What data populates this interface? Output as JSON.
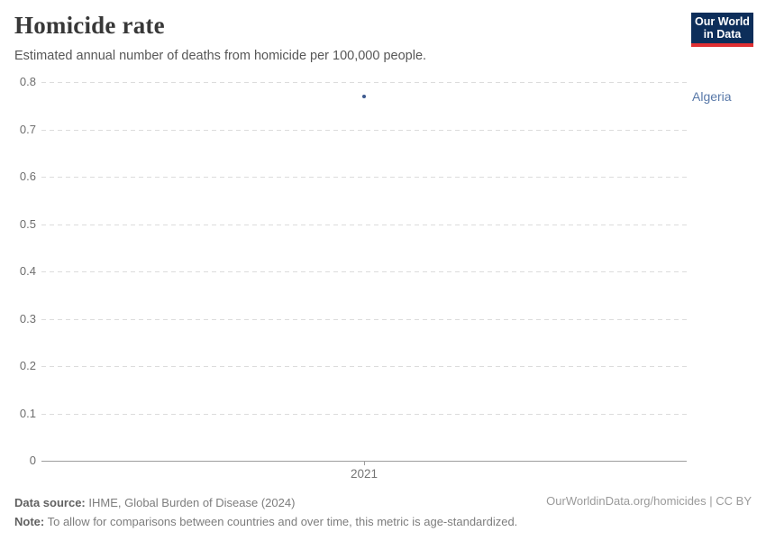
{
  "header": {
    "title": "Homicide rate",
    "subtitle": "Estimated annual number of deaths from homicide per 100,000 people."
  },
  "logo": {
    "line1": "Our World",
    "line2": "in Data",
    "bg_color": "#0d2e5a",
    "accent_color": "#e02f32"
  },
  "chart_data": {
    "type": "scatter",
    "title": "Homicide rate",
    "subtitle": "Estimated annual number of deaths from homicide per 100,000 people.",
    "x": [
      2021
    ],
    "series": [
      {
        "name": "Algeria",
        "values": [
          0.77
        ]
      }
    ],
    "xticks": [
      "2021"
    ],
    "yticks": [
      0,
      0.1,
      0.2,
      0.3,
      0.4,
      0.5,
      0.6,
      0.7,
      0.8
    ],
    "ylim": [
      0,
      0.8
    ],
    "xlabel": "",
    "ylabel": "",
    "grid": "horizontal-dashed",
    "legend_position": "right-of-plot",
    "point_color": "#3d5a8f",
    "entity_label_color": "#5878a8"
  },
  "footer": {
    "data_source_label": "Data source:",
    "data_source_value": "IHME, Global Burden of Disease (2024)",
    "note_label": "Note:",
    "note_value": "To allow for comparisons between countries and over time, this metric is age-standardized.",
    "link": "OurWorldinData.org/homicides | CC BY"
  }
}
